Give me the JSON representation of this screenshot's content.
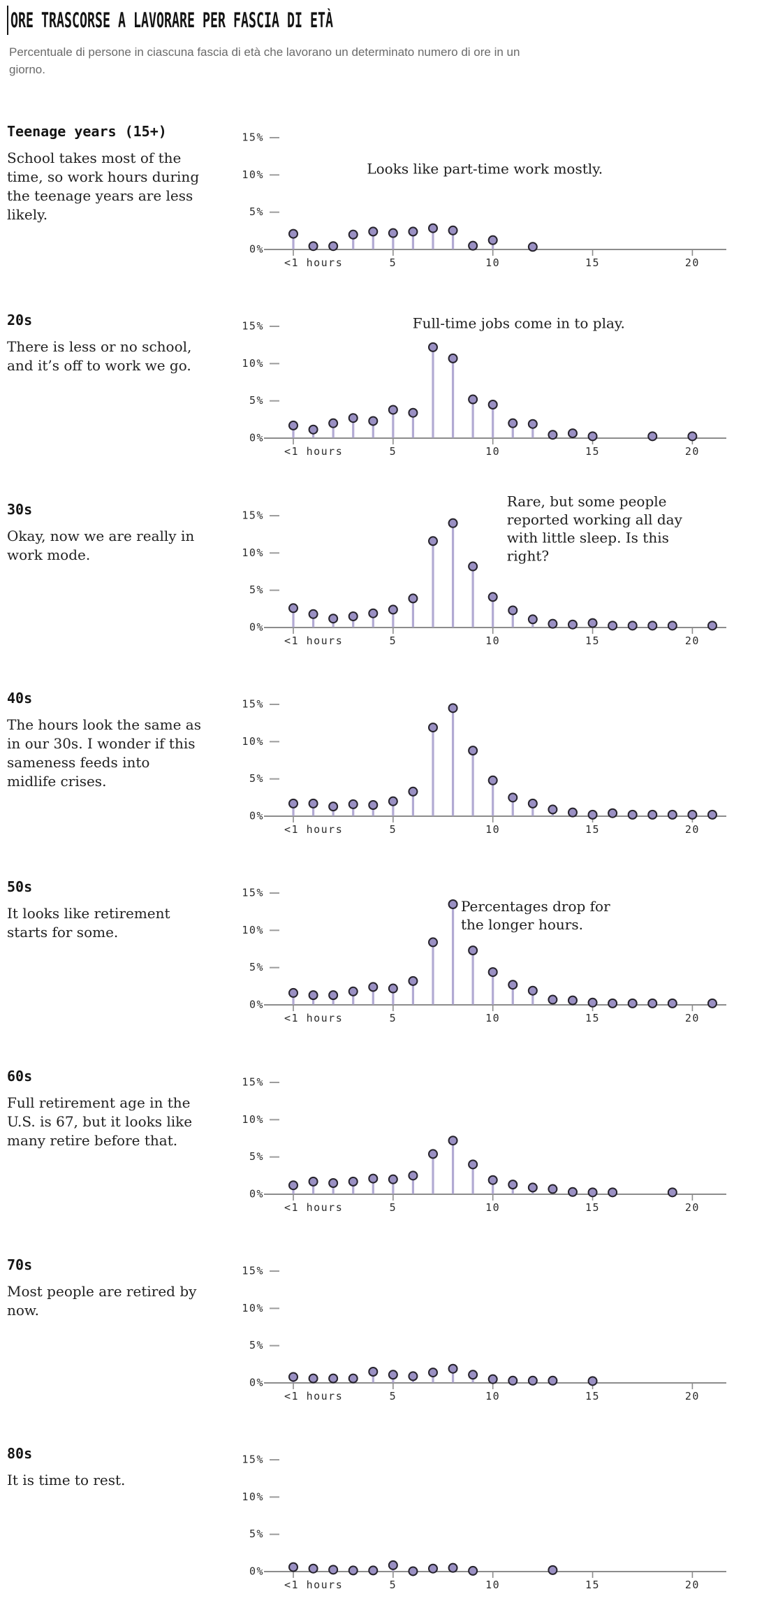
{
  "page": {
    "title": "ORE TRASCORSE A LAVORARE PER FASCIA DI ETÀ",
    "subtitle": "Percentuale di persone in ciascuna fascia di età che lavorano un determinato numero di ore in un giorno."
  },
  "colors": {
    "dot_fill": "#9a90c3",
    "dot_stroke": "#26232c",
    "stem": "#b2aad3",
    "axis": "#8c8c8c",
    "tick_dash": "#9c9c9c",
    "axis_text": "#2b2b2b",
    "heading_text": "#141414",
    "body_text": "#212121",
    "subtitle_text": "#6a6a6a"
  },
  "chart_data": {
    "type": "lollipop",
    "title": "ORE TRASCORSE A LAVORARE PER FASCIA DI ETÀ",
    "x_unit": "hours worked in a day",
    "x_ticks": [
      0,
      5,
      10,
      15,
      20
    ],
    "x_tick_labels": [
      "<1 hours",
      "5",
      "10",
      "15",
      "20"
    ],
    "xlim": [
      -1.5,
      22
    ],
    "y_ticks": [
      0,
      5,
      10,
      15
    ],
    "y_tick_labels": [
      "0%",
      "5%",
      "10%",
      "15%"
    ],
    "ylim": [
      0,
      18.7
    ],
    "grid": "off",
    "legend": "none",
    "charts": [
      {
        "age_group": "Teenage years (15+)",
        "description": "School takes most of the time, so work hours during the teenage years are less likely.",
        "annotation": {
          "lines": [
            "Looks like part-time work mostly."
          ],
          "x": 9.6,
          "y": 10.7,
          "line_h": 2.44,
          "anchor": "middle"
        },
        "points": [
          [
            0,
            2.1
          ],
          [
            1,
            0.45
          ],
          [
            2,
            0.45
          ],
          [
            3,
            2.0
          ],
          [
            4,
            2.4
          ],
          [
            5,
            2.2
          ],
          [
            6,
            2.4
          ],
          [
            7,
            2.85
          ],
          [
            8,
            2.55
          ],
          [
            9,
            0.5
          ],
          [
            10,
            1.25
          ],
          [
            12,
            0.35
          ]
        ]
      },
      {
        "age_group": "20s",
        "description": "There is less or no school, and it’s off to work we go.",
        "annotation": {
          "lines": [
            "Full-time jobs come in to play."
          ],
          "x": 11.3,
          "y": 15.3,
          "line_h": 2.44,
          "anchor": "middle"
        },
        "points": [
          [
            0,
            1.7
          ],
          [
            1,
            1.15
          ],
          [
            2,
            2.0
          ],
          [
            3,
            2.7
          ],
          [
            4,
            2.3
          ],
          [
            5,
            3.8
          ],
          [
            6,
            3.4
          ],
          [
            7,
            12.2
          ],
          [
            8,
            10.7
          ],
          [
            9,
            5.2
          ],
          [
            10,
            4.5
          ],
          [
            11,
            2.0
          ],
          [
            12,
            1.9
          ],
          [
            13,
            0.45
          ],
          [
            14,
            0.65
          ],
          [
            15,
            0.25
          ],
          [
            18,
            0.25
          ],
          [
            20,
            0.25
          ]
        ]
      },
      {
        "age_group": "30s",
        "description": "Okay, now we are really in work mode.",
        "annotation": {
          "lines": [
            "Rare, but some people",
            "reported working all day",
            "with little sleep. Is this",
            "right?"
          ],
          "x": 10.7,
          "y": 16.8,
          "line_h": 2.44,
          "anchor": "start"
        },
        "points": [
          [
            0,
            2.6
          ],
          [
            1,
            1.8
          ],
          [
            2,
            1.2
          ],
          [
            3,
            1.5
          ],
          [
            4,
            1.9
          ],
          [
            5,
            2.4
          ],
          [
            6,
            3.9
          ],
          [
            7,
            11.6
          ],
          [
            8,
            14.0
          ],
          [
            9,
            8.2
          ],
          [
            10,
            4.1
          ],
          [
            11,
            2.3
          ],
          [
            12,
            1.1
          ],
          [
            13,
            0.5
          ],
          [
            14,
            0.4
          ],
          [
            15,
            0.6
          ],
          [
            16,
            0.25
          ],
          [
            17,
            0.25
          ],
          [
            18,
            0.25
          ],
          [
            19,
            0.25
          ],
          [
            21,
            0.25
          ]
        ]
      },
      {
        "age_group": "40s",
        "description": "The hours look the same as in our 30s. I wonder if this sameness feeds into midlife crises.",
        "annotation": null,
        "points": [
          [
            0,
            1.7
          ],
          [
            1,
            1.7
          ],
          [
            2,
            1.3
          ],
          [
            3,
            1.6
          ],
          [
            4,
            1.5
          ],
          [
            5,
            2.0
          ],
          [
            6,
            3.3
          ],
          [
            7,
            11.9
          ],
          [
            8,
            14.5
          ],
          [
            9,
            8.8
          ],
          [
            10,
            4.8
          ],
          [
            11,
            2.5
          ],
          [
            12,
            1.7
          ],
          [
            13,
            0.9
          ],
          [
            14,
            0.5
          ],
          [
            15,
            0.2
          ],
          [
            16,
            0.4
          ],
          [
            17,
            0.2
          ],
          [
            18,
            0.2
          ],
          [
            19,
            0.2
          ],
          [
            20,
            0.2
          ],
          [
            21,
            0.2
          ]
        ]
      },
      {
        "age_group": "50s",
        "description": "It looks like retirement starts for some.",
        "annotation": {
          "lines": [
            "Percentages drop for",
            "the longer hours."
          ],
          "x": 8.4,
          "y": 13.1,
          "line_h": 2.44,
          "anchor": "start"
        },
        "points": [
          [
            0,
            1.6
          ],
          [
            1,
            1.3
          ],
          [
            2,
            1.3
          ],
          [
            3,
            1.8
          ],
          [
            4,
            2.4
          ],
          [
            5,
            2.2
          ],
          [
            6,
            3.2
          ],
          [
            7,
            8.4
          ],
          [
            8,
            13.5
          ],
          [
            9,
            7.3
          ],
          [
            10,
            4.4
          ],
          [
            11,
            2.7
          ],
          [
            12,
            1.9
          ],
          [
            13,
            0.7
          ],
          [
            14,
            0.6
          ],
          [
            15,
            0.3
          ],
          [
            16,
            0.2
          ],
          [
            17,
            0.2
          ],
          [
            18,
            0.2
          ],
          [
            19,
            0.2
          ],
          [
            21,
            0.2
          ]
        ]
      },
      {
        "age_group": "60s",
        "description": "Full retirement age in the U.S. is 67, but it looks like many retire before that.",
        "annotation": null,
        "points": [
          [
            0,
            1.2
          ],
          [
            1,
            1.7
          ],
          [
            2,
            1.5
          ],
          [
            3,
            1.7
          ],
          [
            4,
            2.1
          ],
          [
            5,
            2.0
          ],
          [
            6,
            2.5
          ],
          [
            7,
            5.4
          ],
          [
            8,
            7.2
          ],
          [
            9,
            4.0
          ],
          [
            10,
            1.9
          ],
          [
            11,
            1.3
          ],
          [
            12,
            0.9
          ],
          [
            13,
            0.7
          ],
          [
            14,
            0.3
          ],
          [
            15,
            0.25
          ],
          [
            16,
            0.25
          ],
          [
            19,
            0.25
          ]
        ]
      },
      {
        "age_group": "70s",
        "description": "Most people are retired by now.",
        "annotation": null,
        "points": [
          [
            0,
            0.8
          ],
          [
            1,
            0.6
          ],
          [
            2,
            0.6
          ],
          [
            3,
            0.6
          ],
          [
            4,
            1.5
          ],
          [
            5,
            1.1
          ],
          [
            6,
            0.9
          ],
          [
            7,
            1.4
          ],
          [
            8,
            1.9
          ],
          [
            9,
            1.1
          ],
          [
            10,
            0.5
          ],
          [
            11,
            0.3
          ],
          [
            12,
            0.3
          ],
          [
            13,
            0.3
          ],
          [
            15,
            0.25
          ]
        ]
      },
      {
        "age_group": "80s",
        "description": "It is time to rest.",
        "annotation": null,
        "points": [
          [
            0,
            0.6
          ],
          [
            1,
            0.4
          ],
          [
            2,
            0.25
          ],
          [
            3,
            0.15
          ],
          [
            4,
            0.15
          ],
          [
            5,
            0.85
          ],
          [
            6,
            0.05
          ],
          [
            7,
            0.4
          ],
          [
            8,
            0.5
          ],
          [
            9,
            0.1
          ],
          [
            13,
            0.2
          ]
        ]
      }
    ]
  }
}
